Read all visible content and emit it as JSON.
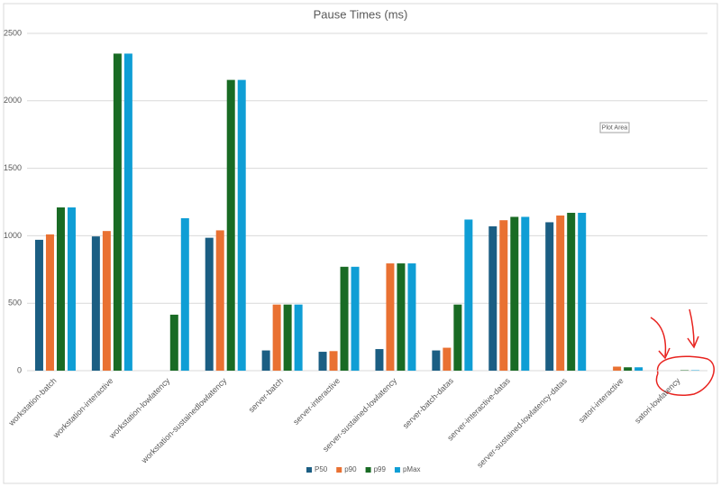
{
  "chart_data": {
    "type": "bar",
    "title": "Pause Times (ms)",
    "categories": [
      "workstation-batch",
      "workstation-interactive",
      "workstation-lowlatency",
      "workstation-sustainedlowlatency",
      "server-batch",
      "server-interactive",
      "server-sustained-lowlatency",
      "server-batch-datas",
      "server-interactive-datas",
      "server-sustained-lowlatency-datas",
      "satori-interactive",
      "satori-lowlatency"
    ],
    "series": [
      {
        "name": "P50",
        "color": "#1b5e83",
        "values": [
          970,
          995,
          0,
          985,
          150,
          140,
          160,
          150,
          1070,
          1100,
          0,
          0
        ]
      },
      {
        "name": "p90",
        "color": "#e97132",
        "values": [
          1010,
          1035,
          0,
          1040,
          490,
          145,
          795,
          170,
          1115,
          1150,
          30,
          0
        ]
      },
      {
        "name": "p99",
        "color": "#196b24",
        "values": [
          1210,
          2350,
          415,
          2155,
          490,
          770,
          795,
          490,
          1140,
          1170,
          25,
          3
        ]
      },
      {
        "name": "pMax",
        "color": "#0f9ed5",
        "values": [
          1210,
          2350,
          1130,
          2155,
          490,
          770,
          795,
          1120,
          1140,
          1170,
          25,
          3
        ]
      }
    ],
    "ylim": [
      0,
      2500
    ],
    "yticks": [
      0,
      500,
      1000,
      1500,
      2000,
      2500
    ],
    "grid": true,
    "legend": "bottom"
  },
  "tooltip": "Plot Area"
}
